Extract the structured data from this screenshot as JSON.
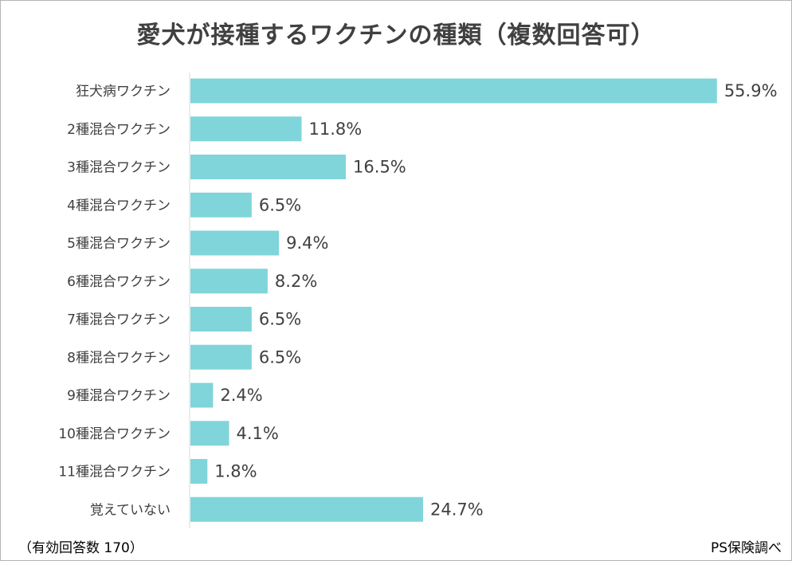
{
  "chart_data": {
    "type": "bar",
    "orientation": "horizontal",
    "title": "愛犬が接種するワクチンの種類（複数回答可）",
    "categories": [
      "狂犬病ワクチン",
      "2種混合ワクチン",
      "3種混合ワクチン",
      "4種混合ワクチン",
      "5種混合ワクチン",
      "6種混合ワクチン",
      "7種混合ワクチン",
      "8種混合ワクチン",
      "9種混合ワクチン",
      "10種混合ワクチン",
      "11種混合ワクチン",
      "覚えていない"
    ],
    "values": [
      55.9,
      11.8,
      16.5,
      6.5,
      9.4,
      8.2,
      6.5,
      6.5,
      2.4,
      4.1,
      1.8,
      24.7
    ],
    "value_labels": [
      "55.9%",
      "11.8%",
      "16.5%",
      "6.5%",
      "9.4%",
      "8.2%",
      "6.5%",
      "6.5%",
      "2.4%",
      "4.1%",
      "1.8%",
      "24.7%"
    ],
    "unit": "%",
    "xlim": [
      0,
      56
    ],
    "grid": false,
    "bar_color": "#7fd5da",
    "footnote": "（有効回答数 170）",
    "source": "PS保険調べ"
  }
}
